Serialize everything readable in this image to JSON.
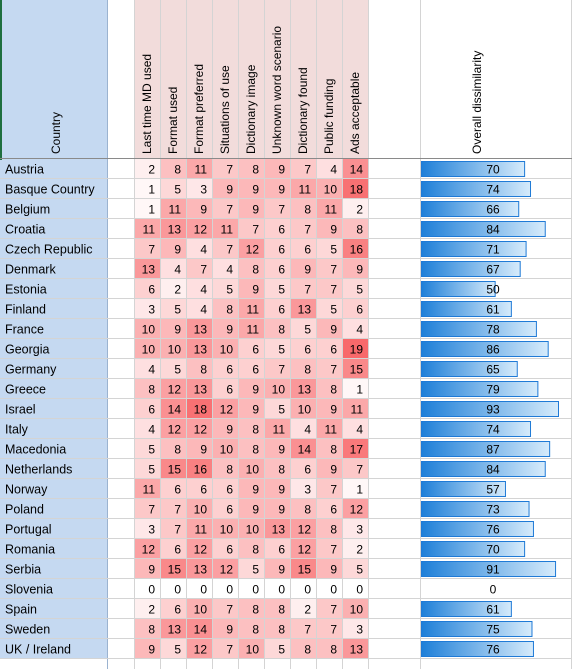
{
  "chart_data": {
    "type": "table",
    "row_header": "Country",
    "columns": [
      "Last time MD used",
      "Format used",
      "Format preferred",
      "Situations of use",
      "Dictionary image",
      "Unknown word scenario",
      "Dictionary found",
      "Public funding",
      "Ads acceptable"
    ],
    "overall_label": "Overall dissimilarity",
    "overall_max": 93,
    "cell_max": 19,
    "colors": {
      "country_fill": "#c5d9f1",
      "header_fill": "#f2dcdb",
      "heat_high": "#f8696b",
      "heat_low": "#ffffff",
      "bar_dark": "#1e7fd8",
      "bar_light": "#d6ebfb",
      "bar_border": "#1f7ad6",
      "grid": "#d4d4d4"
    },
    "rows": [
      {
        "country": "Austria",
        "values": [
          2,
          8,
          11,
          7,
          8,
          9,
          7,
          4,
          14
        ],
        "overall": 70
      },
      {
        "country": "Basque Country",
        "values": [
          1,
          5,
          3,
          9,
          9,
          9,
          11,
          10,
          18
        ],
        "overall": 74
      },
      {
        "country": "Belgium",
        "values": [
          1,
          11,
          9,
          7,
          9,
          7,
          8,
          11,
          2
        ],
        "overall": 66
      },
      {
        "country": "Croatia",
        "values": [
          11,
          13,
          12,
          11,
          7,
          6,
          7,
          9,
          8
        ],
        "overall": 84
      },
      {
        "country": "Czech Republic",
        "values": [
          7,
          9,
          4,
          7,
          12,
          6,
          6,
          5,
          16
        ],
        "overall": 71
      },
      {
        "country": "Denmark",
        "values": [
          13,
          4,
          7,
          4,
          8,
          6,
          9,
          7,
          9
        ],
        "overall": 67
      },
      {
        "country": "Estonia",
        "values": [
          6,
          2,
          4,
          5,
          9,
          5,
          7,
          7,
          5
        ],
        "overall": 50
      },
      {
        "country": "Finland",
        "values": [
          3,
          5,
          4,
          8,
          11,
          6,
          13,
          5,
          6
        ],
        "overall": 61
      },
      {
        "country": "France",
        "values": [
          10,
          9,
          13,
          9,
          11,
          8,
          5,
          9,
          4
        ],
        "overall": 78
      },
      {
        "country": "Georgia",
        "values": [
          10,
          10,
          13,
          10,
          6,
          5,
          6,
          6,
          19
        ],
        "overall": 86
      },
      {
        "country": "Germany",
        "values": [
          4,
          5,
          8,
          6,
          6,
          7,
          8,
          7,
          15
        ],
        "overall": 65
      },
      {
        "country": "Greece",
        "values": [
          8,
          12,
          13,
          6,
          9,
          10,
          13,
          8,
          1
        ],
        "overall": 79
      },
      {
        "country": "Israel",
        "values": [
          6,
          14,
          18,
          12,
          9,
          5,
          10,
          9,
          11
        ],
        "overall": 93
      },
      {
        "country": "Italy",
        "values": [
          4,
          12,
          12,
          9,
          8,
          11,
          4,
          11,
          4
        ],
        "overall": 74
      },
      {
        "country": "Macedonia",
        "values": [
          5,
          8,
          9,
          10,
          8,
          9,
          14,
          8,
          17
        ],
        "overall": 87
      },
      {
        "country": "Netherlands",
        "values": [
          5,
          15,
          16,
          8,
          10,
          8,
          6,
          9,
          7
        ],
        "overall": 84
      },
      {
        "country": "Norway",
        "values": [
          11,
          6,
          6,
          6,
          9,
          9,
          3,
          7,
          1
        ],
        "overall": 57
      },
      {
        "country": "Poland",
        "values": [
          7,
          7,
          10,
          6,
          9,
          9,
          8,
          6,
          12
        ],
        "overall": 73
      },
      {
        "country": "Portugal",
        "values": [
          3,
          7,
          11,
          10,
          10,
          13,
          12,
          8,
          3
        ],
        "overall": 76
      },
      {
        "country": "Romania",
        "values": [
          12,
          6,
          12,
          6,
          8,
          6,
          12,
          7,
          2
        ],
        "overall": 70
      },
      {
        "country": "Serbia",
        "values": [
          9,
          15,
          13,
          12,
          5,
          9,
          15,
          9,
          5
        ],
        "overall": 91
      },
      {
        "country": "Slovenia",
        "values": [
          0,
          0,
          0,
          0,
          0,
          0,
          0,
          0,
          0
        ],
        "overall": 0
      },
      {
        "country": "Spain",
        "values": [
          2,
          6,
          10,
          7,
          8,
          8,
          2,
          7,
          10
        ],
        "overall": 61
      },
      {
        "country": "Sweden",
        "values": [
          8,
          13,
          14,
          9,
          8,
          8,
          7,
          7,
          3
        ],
        "overall": 75
      },
      {
        "country": "UK / Ireland",
        "values": [
          9,
          5,
          12,
          7,
          10,
          5,
          8,
          8,
          13
        ],
        "overall": 76
      }
    ]
  }
}
